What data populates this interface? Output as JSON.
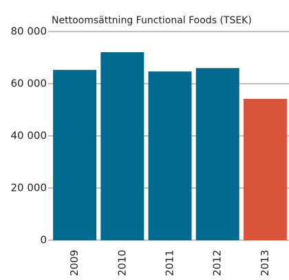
{
  "chart_data": {
    "type": "bar",
    "title": "Nettoomsättning Functional Foods (TSEK)",
    "categories": [
      "2009",
      "2010",
      "2011",
      "2012",
      "2013"
    ],
    "values": [
      65300,
      72100,
      64700,
      66000,
      54200
    ],
    "colors": [
      "#006a8e",
      "#006a8e",
      "#006a8e",
      "#006a8e",
      "#d9553a"
    ],
    "ylim": [
      0,
      80000
    ],
    "yticks": [
      0,
      {
        "value": 20000,
        "label": "20 000"
      },
      {
        "value": 40000,
        "label": "40 000"
      },
      {
        "value": 60000,
        "label": "60 000"
      },
      {
        "value": 80000,
        "label": "80 000"
      }
    ],
    "grid": true
  }
}
